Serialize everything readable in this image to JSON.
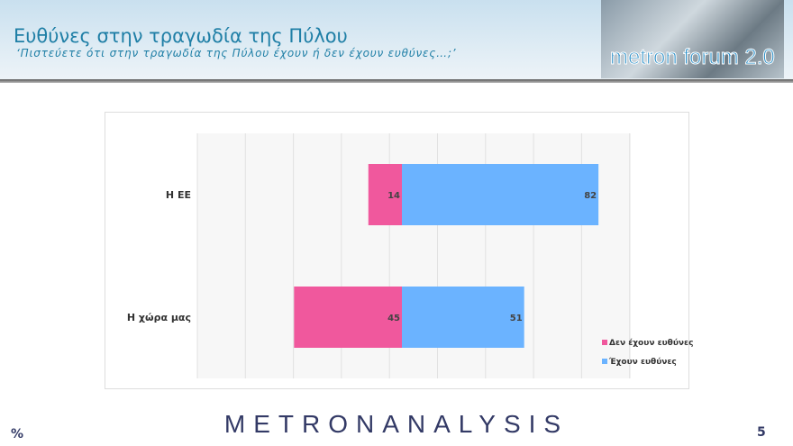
{
  "header": {
    "title": "Ευθύνες στην τραγωδία της Πύλου",
    "subtitle": "‘Πιστεύετε ότι στην τραγωδία της Πύλου έχουν ή δεν έχουν ευθύνες…;’",
    "logo_text": "metron forum 2.0"
  },
  "footer": {
    "brand": "METRONANALYSIS",
    "unit": "%",
    "page": "5"
  },
  "chart_data": {
    "type": "bar",
    "orientation": "horizontal",
    "stacked": "diverging",
    "categories": [
      "Η ΕΕ",
      "Η χώρα μας"
    ],
    "series": [
      {
        "name": "Δεν έχουν ευθύνες",
        "values": [
          14,
          45
        ],
        "color": "#f0589d",
        "direction": "left"
      },
      {
        "name": "Έχουν ευθύνες",
        "values": [
          82,
          51
        ],
        "color": "#6bb3ff",
        "direction": "right"
      }
    ],
    "legend": "bottom-right",
    "grid": true
  }
}
